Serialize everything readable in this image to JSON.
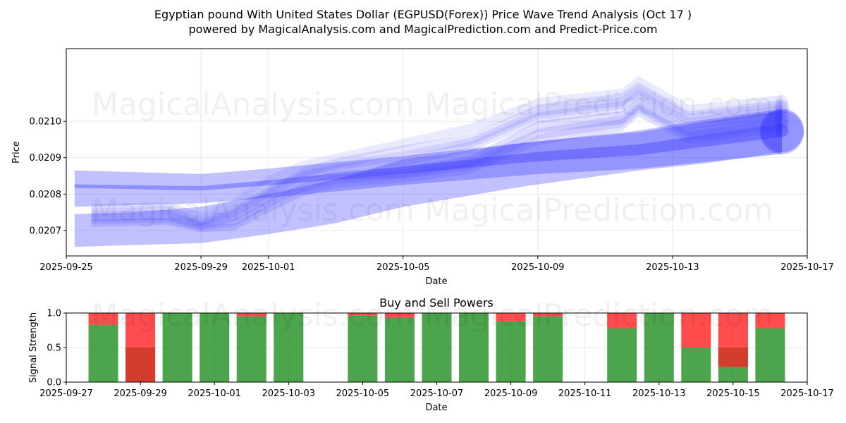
{
  "header": {
    "title_line1": "Egyptian pound With United States Dollar (EGPUSD(Forex)) Price Wave Trend Analysis (Oct 17 )",
    "title_line2": "powered by MagicalAnalysis.com and MagicalPrediction.com and Predict-Price.com"
  },
  "watermarks": {
    "left": "MagicalAnalysis.com",
    "right": "MagicalPrediction.com"
  },
  "colors": {
    "wave": "#3333ff",
    "buy": "#1a8a1a",
    "sell": "#ff1a1a"
  },
  "chart_data": [
    {
      "type": "area",
      "name": "price-wave-chart",
      "xlabel": "Date",
      "ylabel": "Price",
      "x_ticks": [
        "2025-09-25",
        "2025-09-29",
        "2025-10-01",
        "2025-10-05",
        "2025-10-09",
        "2025-10-13",
        "2025-10-17"
      ],
      "y_ticks": [
        "0.0207",
        "0.0208",
        "0.0209",
        "0.0210"
      ],
      "xlim": [
        "2025-09-25",
        "2025-10-17"
      ],
      "ylim": [
        0.02063,
        0.0212
      ],
      "grid": true,
      "series": [
        {
          "name": "wave-main",
          "x": [
            0.25,
            4,
            6,
            10,
            14,
            17,
            21.25
          ],
          "center": [
            0.020822,
            0.020816,
            0.020831,
            0.020866,
            0.020903,
            0.020922,
            0.020975
          ],
          "halfwidth": [
            5e-06,
            6e-06,
            7e-06,
            1e-05,
            1.3e-05,
            1.5e-05,
            1.8e-05
          ],
          "opacity": 0.35
        },
        {
          "name": "wave-envelope",
          "x": [
            0.25,
            4,
            6,
            10,
            14,
            17,
            21.25
          ],
          "center": [
            0.020815,
            0.020815,
            0.02083,
            0.020865,
            0.0209,
            0.02092,
            0.02097
          ],
          "halfwidth": [
            5e-05,
            4e-05,
            4e-05,
            4e-05,
            4.5e-05,
            5e-05,
            6e-05
          ],
          "opacity": 0.3
        },
        {
          "name": "wave-lower",
          "x": [
            0.25,
            2,
            4,
            6,
            8,
            10,
            13.5,
            17,
            19,
            21.25
          ],
          "center": [
            0.0207,
            0.020705,
            0.020715,
            0.020745,
            0.02078,
            0.02083,
            0.02088,
            0.02092,
            0.020945,
            0.020975
          ],
          "halfwidth": [
            4.5e-05,
            4.5e-05,
            5e-05,
            5.5e-05,
            6e-05,
            6.5e-05,
            6e-05,
            5.5e-05,
            6e-05,
            6e-05
          ],
          "opacity": 0.3
        },
        {
          "name": "wave-a",
          "x": [
            0.75,
            3,
            4,
            5,
            6,
            7,
            8,
            10,
            12,
            14,
            16.5,
            17,
            18.5,
            21.25
          ],
          "center": [
            0.020735,
            0.020738,
            0.020712,
            0.020735,
            0.020785,
            0.02083,
            0.02085,
            0.02086,
            0.02089,
            0.020985,
            0.02101,
            0.02105,
            0.020975,
            0.02101
          ],
          "halfwidth": [
            1e-05,
            1e-05,
            1e-05,
            1e-05,
            1.2e-05,
            1.2e-05,
            1.2e-05,
            1.4e-05,
            1.5e-05,
            1.6e-05,
            1.8e-05,
            1.8e-05,
            1.8e-05,
            2e-05
          ],
          "opacity": 0.16
        },
        {
          "name": "wave-b",
          "x": [
            0.75,
            3,
            4,
            5,
            6,
            7,
            8,
            10,
            12,
            14,
            16.5,
            17,
            18.5,
            21.25
          ],
          "center": [
            0.020755,
            0.02076,
            0.020725,
            0.02076,
            0.02081,
            0.02086,
            0.020885,
            0.02092,
            0.02095,
            0.02103,
            0.02106,
            0.02109,
            0.02101,
            0.02104
          ],
          "halfwidth": [
            1e-05,
            1e-05,
            1e-05,
            1.1e-05,
            1.2e-05,
            1.3e-05,
            1.3e-05,
            1.4e-05,
            1.5e-05,
            1.6e-05,
            1.8e-05,
            1.8e-05,
            1.8e-05,
            2e-05
          ],
          "opacity": 0.13
        },
        {
          "name": "wave-c",
          "x": [
            0.75,
            3,
            4,
            5,
            6,
            7,
            8,
            10,
            12,
            14,
            16.5,
            17,
            18.5,
            21.25
          ],
          "center": [
            0.02072,
            0.020725,
            0.020705,
            0.02071,
            0.02076,
            0.020805,
            0.02083,
            0.020845,
            0.02087,
            0.02095,
            0.02099,
            0.02103,
            0.020955,
            0.02099
          ],
          "halfwidth": [
            1e-05,
            1e-05,
            1e-05,
            1e-05,
            1.1e-05,
            1.2e-05,
            1.2e-05,
            1.3e-05,
            1.4e-05,
            1.5e-05,
            1.7e-05,
            1.7e-05,
            1.7e-05,
            1.9e-05
          ],
          "opacity": 0.14
        },
        {
          "name": "wave-d",
          "x": [
            0.75,
            3,
            4,
            5,
            6,
            7,
            8,
            10,
            12,
            14,
            16.5,
            17,
            18.5,
            21.25
          ],
          "center": [
            0.020745,
            0.020748,
            0.020718,
            0.020745,
            0.0208,
            0.02085,
            0.02087,
            0.02089,
            0.02093,
            0.02101,
            0.02104,
            0.021075,
            0.020995,
            0.021025
          ],
          "halfwidth": [
            9e-06,
            9e-06,
            9e-06,
            1e-05,
            1.1e-05,
            1.2e-05,
            1.2e-05,
            1.3e-05,
            1.4e-05,
            1.5e-05,
            1.6e-05,
            1.6e-05,
            1.6e-05,
            1.8e-05
          ],
          "opacity": 0.12
        },
        {
          "name": "wave-e",
          "x": [
            0.75,
            3,
            4,
            5,
            6,
            7,
            8,
            10,
            12,
            14,
            16.5,
            17,
            18.5,
            21.25
          ],
          "center": [
            0.020765,
            0.02077,
            0.02074,
            0.02078,
            0.02084,
            0.02088,
            0.0209,
            0.02094,
            0.02098,
            0.02105,
            0.021075,
            0.02111,
            0.02103,
            0.021055
          ],
          "halfwidth": [
            8e-06,
            8e-06,
            8e-06,
            9e-06,
            1e-05,
            1.1e-05,
            1.1e-05,
            1.2e-05,
            1.3e-05,
            1.4e-05,
            1.5e-05,
            1.5e-05,
            1.5e-05,
            1.7e-05
          ],
          "opacity": 0.1
        },
        {
          "name": "wave-f",
          "x": [
            0.75,
            3,
            4,
            5,
            6,
            7,
            8,
            10,
            12,
            14,
            16.5,
            17,
            18.5,
            21.25
          ],
          "center": [
            0.020728,
            0.02073,
            0.02071,
            0.020722,
            0.020775,
            0.020818,
            0.02084,
            0.020855,
            0.02088,
            0.020965,
            0.021,
            0.02104,
            0.020965,
            0.021
          ],
          "halfwidth": [
            1e-05,
            1e-05,
            1e-05,
            1e-05,
            1.1e-05,
            1.2e-05,
            1.2e-05,
            1.3e-05,
            1.4e-05,
            1.5e-05,
            1.7e-05,
            1.7e-05,
            1.7e-05,
            1.9e-05
          ],
          "opacity": 0.13
        },
        {
          "name": "wave-g",
          "x": [
            0.75,
            3,
            4,
            5,
            6,
            7,
            8,
            10,
            12,
            14,
            16.5,
            17,
            18.5,
            21.25
          ],
          "center": [
            0.02075,
            0.020755,
            0.020722,
            0.020752,
            0.020805,
            0.020855,
            0.020878,
            0.020905,
            0.02094,
            0.02102,
            0.02105,
            0.021082,
            0.021005,
            0.021035
          ],
          "halfwidth": [
            9e-06,
            9e-06,
            9e-06,
            1e-05,
            1.1e-05,
            1.2e-05,
            1.2e-05,
            1.3e-05,
            1.4e-05,
            1.5e-05,
            1.6e-05,
            1.6e-05,
            1.6e-05,
            1.8e-05
          ],
          "opacity": 0.11
        }
      ]
    },
    {
      "type": "bar",
      "name": "buy-sell-power-chart",
      "title": "Buy and Sell Powers",
      "xlabel": "Date",
      "ylabel": "Signal Strength",
      "x_ticks": [
        "2025-09-27",
        "2025-09-29",
        "2025-10-01",
        "2025-10-03",
        "2025-10-05",
        "2025-10-07",
        "2025-10-09",
        "2025-10-11",
        "2025-10-13",
        "2025-10-15",
        "2025-10-17"
      ],
      "y_ticks": [
        "0.0",
        "0.5",
        "1.0"
      ],
      "xlim": [
        "2025-09-27",
        "2025-10-17"
      ],
      "ylim": [
        0,
        1
      ],
      "grid": true,
      "categories": [
        "2025-09-28",
        "2025-09-29",
        "2025-09-30",
        "2025-10-01",
        "2025-10-02",
        "2025-10-03",
        "2025-10-05",
        "2025-10-06",
        "2025-10-07",
        "2025-10-08",
        "2025-10-09",
        "2025-10-10",
        "2025-10-12",
        "2025-10-13",
        "2025-10-14",
        "2025-10-15",
        "2025-10-16"
      ],
      "series": [
        {
          "name": "Buy",
          "values": [
            0.83,
            0.0,
            1.0,
            1.0,
            0.95,
            1.0,
            0.96,
            0.94,
            1.0,
            1.0,
            0.88,
            0.95,
            0.78,
            1.0,
            0.5,
            0.22,
            0.78
          ]
        },
        {
          "name": "Sell",
          "values": [
            0.17,
            1.0,
            0.0,
            0.0,
            0.05,
            0.0,
            0.04,
            0.06,
            0.0,
            0.0,
            0.12,
            0.05,
            0.22,
            0.0,
            0.5,
            0.78,
            0.22
          ]
        }
      ]
    }
  ]
}
